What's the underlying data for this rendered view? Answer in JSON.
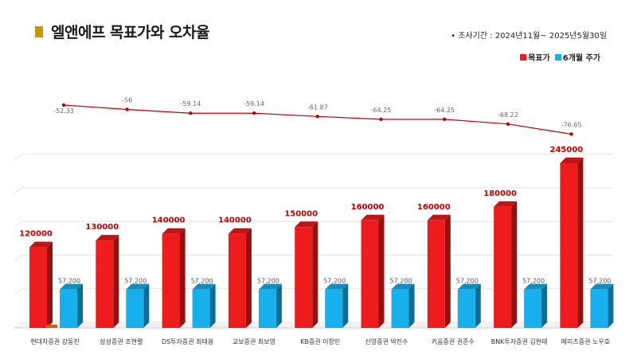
{
  "header": {
    "title": "엘앤에프 목표가와 오차율",
    "period": "•  조사기간 : 2024년11월~ 2025년5월30일",
    "marker_color": "#c8960a"
  },
  "colors": {
    "target": "#ee1c1c",
    "price": "#17b0ec",
    "line": "#c00000"
  },
  "chart_data": {
    "type": "bar",
    "title": "엘앤에프 목표가와 오차율",
    "categories": [
      "현대차증권 강동진",
      "삼성증권 조현렬",
      "DS투자증권 최태용",
      "교보증권 최보영",
      "KB증권 이창민",
      "신영증권 박진수",
      "키움증권 권준수",
      "BNK투자증권 김현태",
      "메리츠증권 노우호"
    ],
    "series": [
      {
        "name": "목표가",
        "values": [
          120000,
          130000,
          140000,
          140000,
          150000,
          160000,
          160000,
          180000,
          245000
        ],
        "labels": [
          "120000",
          "130000",
          "140000",
          "140000",
          "150000",
          "160000",
          "160000",
          "180000",
          "245000"
        ]
      },
      {
        "name": "6개월 주가",
        "values": [
          57200,
          57200,
          57200,
          57200,
          57200,
          57200,
          57200,
          57200,
          57200
        ],
        "labels": [
          "57,200",
          "57,200",
          "57,200",
          "57,200",
          "57,200",
          "57,200",
          "57,200",
          "57,200",
          "57,200"
        ]
      }
    ],
    "error_rate": {
      "values": [
        -52.33,
        -56,
        -59.14,
        -59.14,
        -61.87,
        -64.25,
        -64.25,
        -68.22,
        -76.65
      ],
      "labels": [
        "-52.33",
        "-56",
        "-59.14",
        "-59.14",
        "-61.87",
        "-64.25",
        "-64.25",
        "-68.22",
        "-76.65"
      ]
    },
    "ylim": [
      0,
      280000
    ],
    "grid": true,
    "legend_position": "top-right"
  }
}
